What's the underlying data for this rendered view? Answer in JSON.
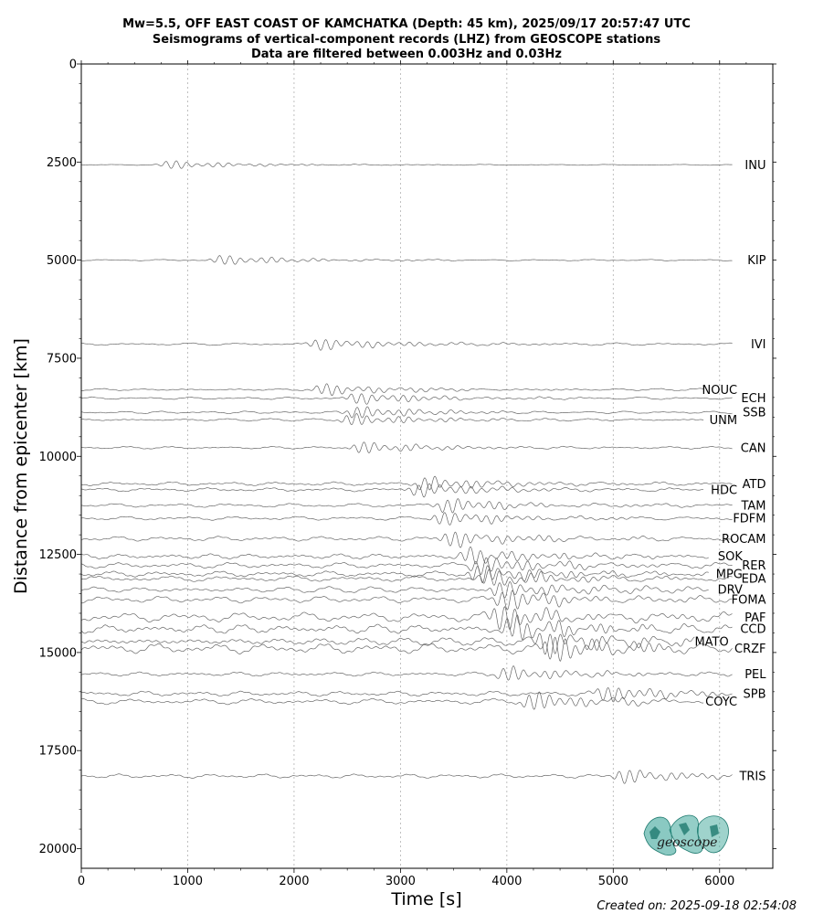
{
  "chart_data": {
    "type": "seismogram-section",
    "title_lines": [
      "Mw=5.5, OFF EAST COAST OF KAMCHATKA (Depth: 45 km), 2025/09/17 20:57:47 UTC",
      "Seismograms of vertical-component records (LHZ) from GEOSCOPE stations",
      "Data are filtered between 0.003Hz and 0.03Hz"
    ],
    "xlabel": "Time [s]",
    "ylabel": "Distance from epicenter [km]",
    "xlim": [
      0,
      6500
    ],
    "ylim": [
      0,
      20500
    ],
    "y_inverted": true,
    "x_ticks": [
      0,
      1000,
      2000,
      3000,
      4000,
      5000,
      6000
    ],
    "y_ticks": [
      0,
      2500,
      5000,
      7500,
      10000,
      12500,
      15000,
      17500,
      20000
    ],
    "grid": "vertical dotted lines at x ticks",
    "stations": [
      {
        "name": "INU",
        "distance": 2570,
        "label_time": 6470,
        "label_offset": 0,
        "arrival": 800,
        "noise": 0.3
      },
      {
        "name": "KIP",
        "distance": 5000,
        "label_time": 6470,
        "label_offset": 0,
        "arrival": 1280,
        "noise": 0.5
      },
      {
        "name": "IVI",
        "distance": 7140,
        "label_time": 6470,
        "label_offset": 0,
        "arrival": 2200,
        "noise": 0.8
      },
      {
        "name": "NOUC",
        "distance": 8300,
        "label_time": 6200,
        "label_offset": 0,
        "arrival": 2250,
        "noise": 0.8
      },
      {
        "name": "ECH",
        "distance": 8520,
        "label_time": 6470,
        "label_offset": 0,
        "arrival": 2550,
        "noise": 0.8
      },
      {
        "name": "SSB",
        "distance": 8880,
        "label_time": 6470,
        "label_offset": 0,
        "arrival": 2550,
        "noise": 0.8
      },
      {
        "name": "UNM",
        "distance": 9070,
        "label_time": 6200,
        "label_offset": 0,
        "arrival": 2500,
        "noise": 0.8
      },
      {
        "name": "CAN",
        "distance": 9780,
        "label_time": 6470,
        "label_offset": 0,
        "arrival": 2600,
        "noise": 0.8
      },
      {
        "name": "ATD",
        "distance": 10700,
        "label_time": 6470,
        "label_offset": -80,
        "arrival": 3200,
        "noise": 1.2
      },
      {
        "name": "HDC",
        "distance": 10850,
        "label_time": 6200,
        "label_offset": 60,
        "arrival": 3150,
        "noise": 1.2
      },
      {
        "name": "TAM",
        "distance": 11250,
        "label_time": 6470,
        "label_offset": 0,
        "arrival": 3400,
        "noise": 1.2
      },
      {
        "name": "FDFM",
        "distance": 11580,
        "label_time": 6470,
        "label_offset": 0,
        "arrival": 3350,
        "noise": 1.2
      },
      {
        "name": "ROCAM",
        "distance": 12100,
        "label_time": 6470,
        "label_offset": 0,
        "arrival": 3450,
        "noise": 1.5
      },
      {
        "name": "SOK",
        "distance": 12550,
        "label_time": 6250,
        "label_offset": 30,
        "arrival": 3600,
        "noise": 1.6
      },
      {
        "name": "RER",
        "distance": 12780,
        "label_time": 6470,
        "label_offset": 0,
        "arrival": 3700,
        "noise": 1.8
      },
      {
        "name": "MPG",
        "distance": 13000,
        "label_time": 6250,
        "label_offset": 30,
        "arrival": 3700,
        "noise": 1.8
      },
      {
        "name": "EDA",
        "distance": 13120,
        "label_time": 6470,
        "label_offset": 40,
        "arrival": 3800,
        "noise": 1.8
      },
      {
        "name": "DRV",
        "distance": 13400,
        "label_time": 6250,
        "label_offset": 30,
        "arrival": 3900,
        "noise": 1.9
      },
      {
        "name": "FOMA",
        "distance": 13650,
        "label_time": 6470,
        "label_offset": 20,
        "arrival": 3950,
        "noise": 2.1
      },
      {
        "name": "PAF",
        "distance": 14100,
        "label_time": 6470,
        "label_offset": 0,
        "arrival": 3900,
        "noise": 3.0
      },
      {
        "name": "CCD",
        "distance": 14400,
        "label_time": 6470,
        "label_offset": 60,
        "arrival": 4000,
        "noise": 2.8
      },
      {
        "name": "MATO",
        "distance": 14720,
        "label_time": 6120,
        "label_offset": 20,
        "arrival": 4300,
        "noise": 2.6
      },
      {
        "name": "CRZF",
        "distance": 14900,
        "label_time": 6470,
        "label_offset": 30,
        "arrival": 4400,
        "noise": 3.2
      },
      {
        "name": "PEL",
        "distance": 15550,
        "label_time": 6470,
        "label_offset": 0,
        "arrival": 3950,
        "noise": 1.3
      },
      {
        "name": "SPB",
        "distance": 16050,
        "label_time": 6470,
        "label_offset": -80,
        "arrival": 4900,
        "noise": 1.6
      },
      {
        "name": "COYC",
        "distance": 16250,
        "label_time": 6200,
        "label_offset": 20,
        "arrival": 4200,
        "noise": 1.8
      },
      {
        "name": "TRIS",
        "distance": 18150,
        "label_time": 6470,
        "label_offset": 0,
        "arrival": 5050,
        "noise": 1.3
      }
    ]
  },
  "logo": {
    "text": "geoscope",
    "color": "#2a9d8f"
  },
  "created": "Created on: 2025-09-18 02:54:08"
}
